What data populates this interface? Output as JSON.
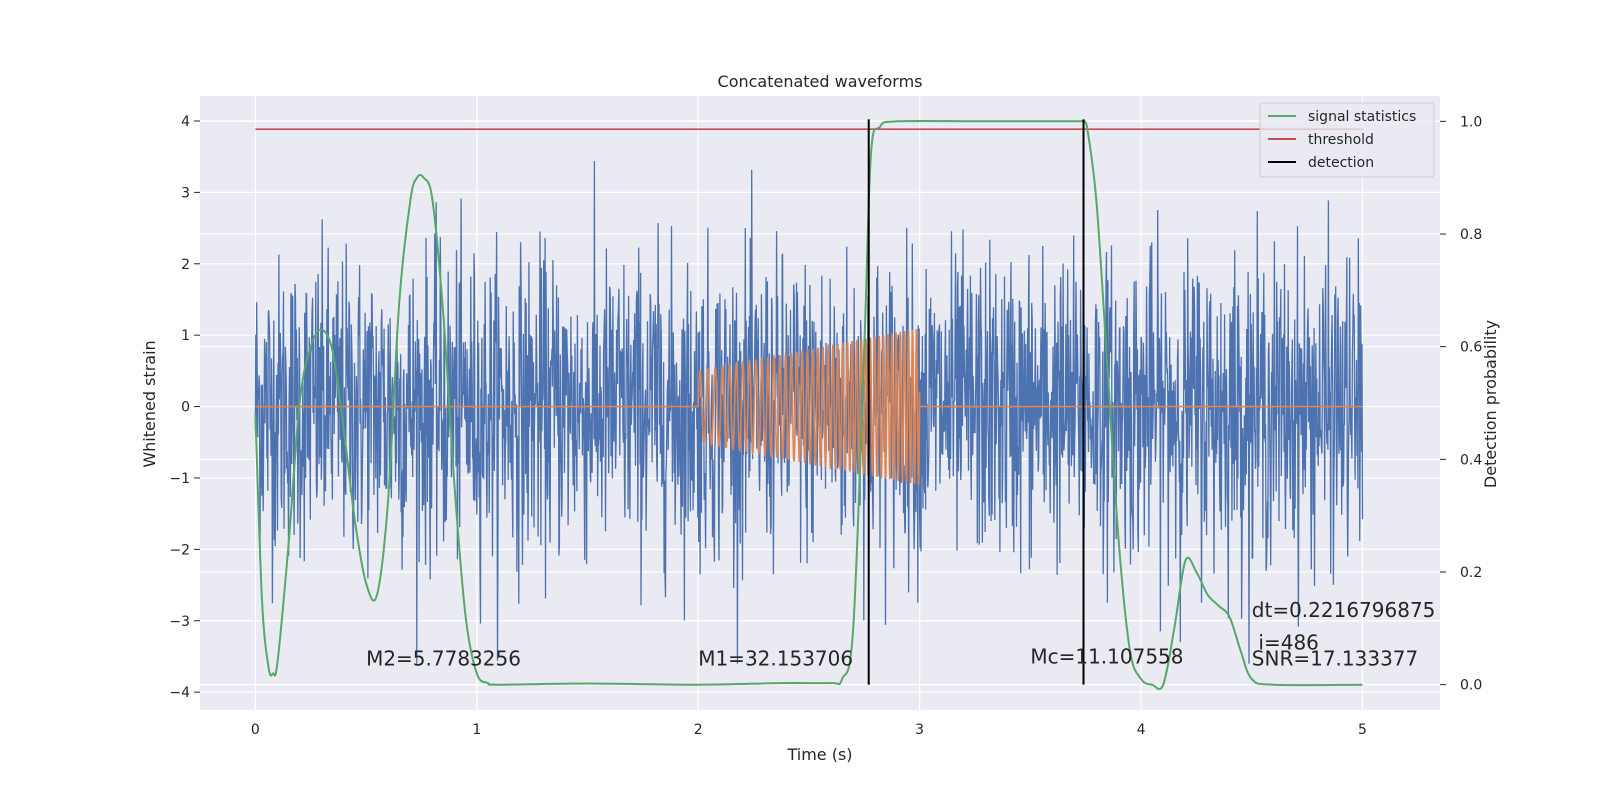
{
  "chart_data": {
    "type": "line",
    "title": "Concatenated waveforms",
    "xlabel": "Time (s)",
    "ylabel": "Whitened strain",
    "y2label": "Detection probability",
    "xlim": [
      -0.25,
      5.35
    ],
    "ylim": [
      -4.25,
      4.35
    ],
    "y2lim": [
      -0.045,
      1.045
    ],
    "x_ticks": [
      0,
      1,
      2,
      3,
      4,
      5
    ],
    "y_ticks": [
      -4,
      -3,
      -2,
      -1,
      0,
      1,
      2,
      3,
      4
    ],
    "y2_ticks": [
      0.0,
      0.2,
      0.4,
      0.6,
      0.8,
      1.0
    ],
    "x_tick_labels": [
      "0",
      "1",
      "2",
      "3",
      "4",
      "5"
    ],
    "y_tick_labels": [
      "−4",
      "−3",
      "−2",
      "−1",
      "0",
      "1",
      "2",
      "3",
      "4"
    ],
    "y2_tick_labels": [
      "0.0",
      "0.2",
      "0.4",
      "0.6",
      "0.8",
      "1.0"
    ],
    "grid": true,
    "legend_position": "top-right",
    "series": [
      {
        "key": "strain",
        "type": "noise",
        "axis": "left",
        "color": "#4c72b0",
        "x_range": [
          0,
          5
        ],
        "amplitude_typical": 1.0,
        "amplitude_max": 3.6
      },
      {
        "key": "waveform",
        "type": "chirp",
        "axis": "left",
        "color": "#dd8452",
        "x_range": [
          0,
          5
        ],
        "chirp_x_range": [
          2.0,
          3.0
        ],
        "amplitude_range": [
          0.5,
          1.1
        ]
      },
      {
        "key": "signal_statistics",
        "name": "signal statistics",
        "type": "line",
        "axis": "right",
        "color": "#55a868",
        "x": [
          0.0,
          0.03,
          0.06,
          0.08,
          0.1,
          0.15,
          0.2,
          0.25,
          0.3,
          0.35,
          0.4,
          0.45,
          0.5,
          0.55,
          0.6,
          0.65,
          0.7,
          0.73,
          0.76,
          0.8,
          0.85,
          0.9,
          0.95,
          1.0,
          1.05,
          1.1,
          1.5,
          2.0,
          2.4,
          2.6,
          2.65,
          2.7,
          2.75,
          2.78,
          2.82,
          2.9,
          3.3,
          3.7,
          3.74,
          3.76,
          3.8,
          3.85,
          3.9,
          3.95,
          4.0,
          4.05,
          4.1,
          4.15,
          4.2,
          4.25,
          4.3,
          4.35,
          4.4,
          4.45,
          4.5,
          4.6,
          5.0
        ],
        "y": [
          0.48,
          0.15,
          0.03,
          0.02,
          0.04,
          0.25,
          0.5,
          0.6,
          0.63,
          0.59,
          0.45,
          0.29,
          0.18,
          0.16,
          0.33,
          0.68,
          0.86,
          0.9,
          0.9,
          0.86,
          0.65,
          0.35,
          0.12,
          0.02,
          0.003,
          0.0,
          0.002,
          0.0,
          0.003,
          0.003,
          0.01,
          0.1,
          0.6,
          0.94,
          0.99,
          1.0,
          1.0,
          1.0,
          1.0,
          0.98,
          0.85,
          0.55,
          0.25,
          0.06,
          0.01,
          0.0,
          0.0,
          0.1,
          0.22,
          0.2,
          0.16,
          0.14,
          0.12,
          0.06,
          0.01,
          0.0,
          0.0
        ]
      },
      {
        "key": "threshold",
        "name": "threshold",
        "type": "line",
        "axis": "right",
        "color": "#c44e52",
        "x": [
          0,
          5
        ],
        "y": [
          0.986,
          0.986
        ]
      },
      {
        "key": "detection",
        "name": "detection",
        "type": "vline",
        "axis": "right",
        "color": "#000000",
        "x": [
          2.77,
          3.74
        ],
        "y": [
          0.0,
          1.0
        ]
      }
    ],
    "annotations": [
      {
        "text": "M2=5.7783256",
        "x": 0.5,
        "y": -3.63
      },
      {
        "text": "M1=32.153706",
        "x": 2.0,
        "y": -3.63
      },
      {
        "text": "Mc=11.107558",
        "x": 3.5,
        "y": -3.6
      },
      {
        "text": "dt=0.2216796875",
        "x": 4.5,
        "y": -2.95
      },
      {
        "text": "i=486",
        "x": 4.53,
        "y": -3.4
      },
      {
        "text": "SNR=17.133377",
        "x": 4.5,
        "y": -3.63
      }
    ],
    "legend": [
      {
        "label": "signal statistics",
        "color": "#55a868"
      },
      {
        "label": "threshold",
        "color": "#c44e52"
      },
      {
        "label": "detection",
        "color": "#000000"
      }
    ]
  }
}
